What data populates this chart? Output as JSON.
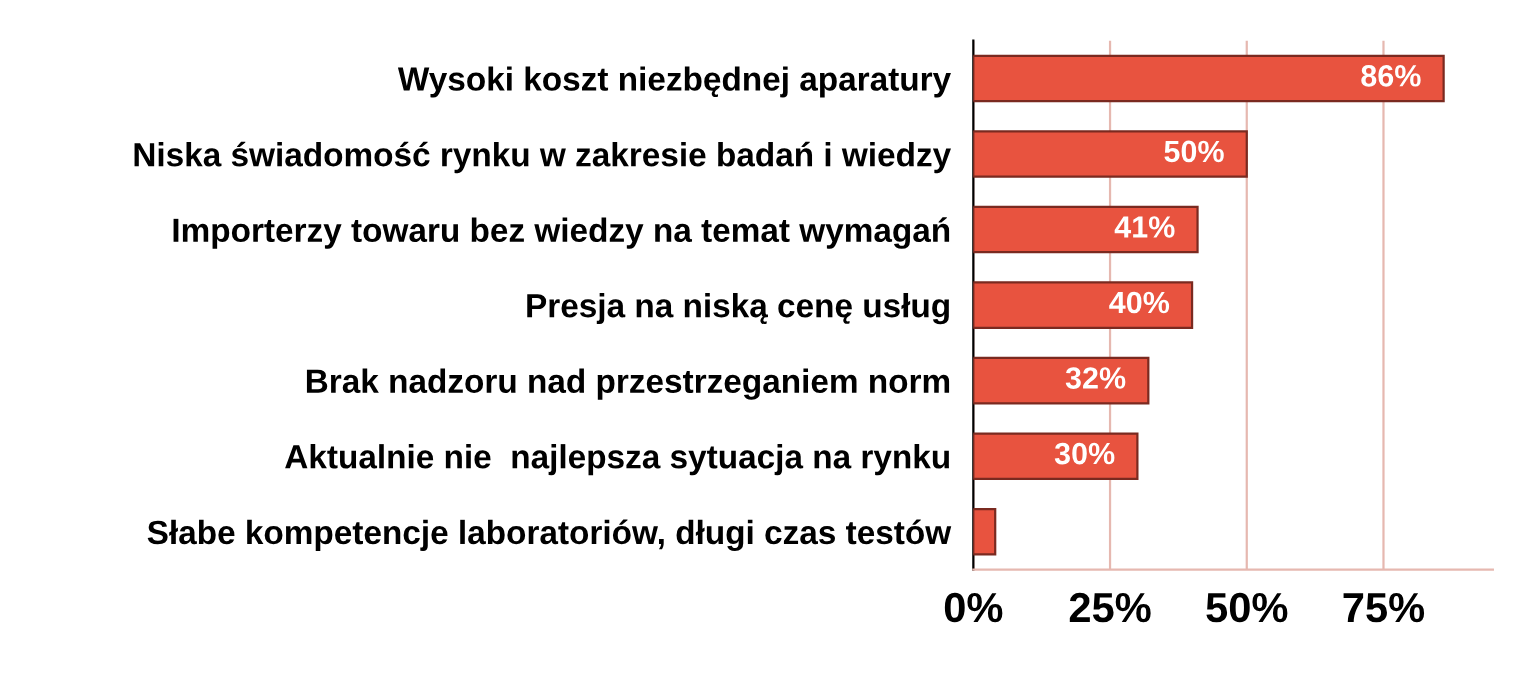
{
  "chart_data": {
    "type": "bar",
    "orientation": "horizontal",
    "categories": [
      "Wysoki koszt niezbędnej aparatury",
      "Niska świadomość rynku w zakresie badań i wiedzy",
      "Importerzy towaru bez wiedzy na temat wymagań",
      "Presja na niską cenę usług",
      "Brak nadzoru nad przestrzeganiem norm",
      "Aktualnie nie  najlepsza sytuacja na rynku",
      "Słabe kompetencje laboratoriów, długi czas testów"
    ],
    "values": [
      86,
      50,
      41,
      40,
      32,
      30,
      4
    ],
    "value_labels": [
      "86%",
      "50%",
      "41%",
      "40%",
      "32%",
      "30%",
      null
    ],
    "color": "#e8533f",
    "xlim": [
      0,
      95
    ],
    "xticks": [
      {
        "value": 0,
        "label": "0%"
      },
      {
        "value": 25,
        "label": "25%"
      },
      {
        "value": 50,
        "label": "50%"
      },
      {
        "value": 75,
        "label": "75%"
      }
    ],
    "grid": "x",
    "legend": false
  }
}
